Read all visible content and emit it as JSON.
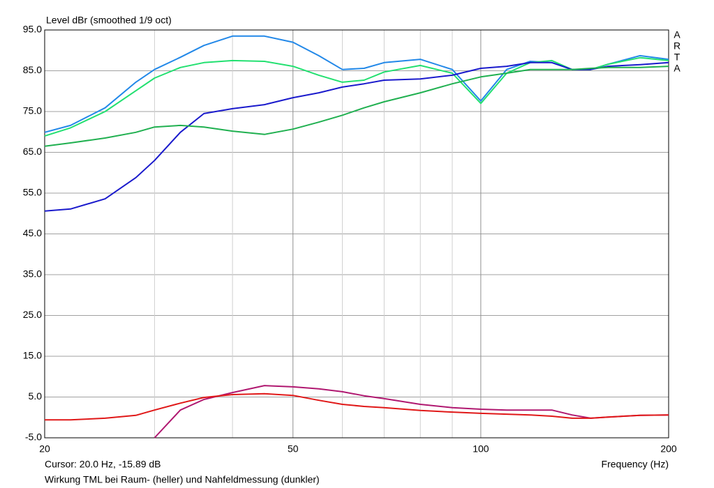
{
  "chart_data": {
    "type": "line",
    "title": "Level dBr (smoothed 1/9 oct)",
    "x_label": "Frequency (Hz)",
    "cursor": "Cursor: 20.0 Hz, -15.89 dB",
    "caption": "Wirkung TML bei Raum- (heller) und Nahfeldmessung (dunkler)",
    "brand": [
      "A",
      "R",
      "T",
      "A"
    ],
    "xscale": "log",
    "grid": true,
    "xlim": [
      20,
      200
    ],
    "ylim": [
      -5,
      95
    ],
    "xticks": [
      20,
      50,
      100,
      200
    ],
    "xminor": [
      30,
      40,
      60,
      70,
      80,
      90
    ],
    "yticks": [
      {
        "value": -5,
        "label": "-5.0"
      },
      {
        "value": 5,
        "label": "5.0"
      },
      {
        "value": 15,
        "label": "15.0"
      },
      {
        "value": 25,
        "label": "25.0"
      },
      {
        "value": 35,
        "label": "35.0"
      },
      {
        "value": 45,
        "label": "45.0"
      },
      {
        "value": 55,
        "label": "55.0"
      },
      {
        "value": 65,
        "label": "65.0"
      },
      {
        "value": 75,
        "label": "75.0"
      },
      {
        "value": 85,
        "label": "85.0"
      },
      {
        "value": 95,
        "label": "95.0"
      }
    ],
    "x": [
      20,
      22,
      25,
      28,
      30,
      33,
      36,
      40,
      45,
      50,
      55,
      60,
      65,
      70,
      80,
      90,
      100,
      110,
      120,
      130,
      140,
      150,
      160,
      180,
      200
    ],
    "series": [
      {
        "color": "#2288e8",
        "values": [
          69.9,
          71.6,
          75.9,
          82.2,
          85.3,
          88.3,
          91.2,
          93.5,
          93.5,
          92,
          88.7,
          85.3,
          85.6,
          87,
          87.8,
          85.3,
          77.6,
          85.3,
          87.3,
          87,
          85.3,
          85.3,
          86.6,
          88.7,
          87.8
        ]
      },
      {
        "color": "#22e070",
        "values": [
          69,
          71,
          75,
          80.1,
          83.2,
          85.8,
          87,
          87.5,
          87.3,
          86.1,
          83.9,
          82.2,
          82.7,
          84.7,
          86.3,
          84.4,
          77,
          84.4,
          87,
          87.5,
          85.3,
          85.3,
          86.6,
          88.2,
          87.5
        ]
      },
      {
        "color": "#1a1acc",
        "values": [
          50.6,
          51.1,
          53.6,
          58.8,
          63,
          69.9,
          74.5,
          75.7,
          76.7,
          78.4,
          79.6,
          81,
          81.8,
          82.7,
          83,
          83.9,
          85.6,
          86.1,
          87,
          87,
          85.3,
          85.3,
          86.1,
          86.5,
          87
        ]
      },
      {
        "color": "#20b050",
        "values": [
          66.5,
          67.3,
          68.5,
          69.9,
          71.2,
          71.6,
          71.2,
          70.2,
          69.4,
          70.7,
          72.4,
          74.1,
          75.9,
          77.4,
          79.6,
          81.8,
          83.5,
          84.4,
          85.3,
          85.3,
          85.3,
          85.6,
          85.8,
          85.8,
          86.1
        ]
      },
      {
        "color": "#b01870",
        "values": [
          null,
          null,
          null,
          null,
          -5,
          1.8,
          4.4,
          6.1,
          7.8,
          7.5,
          7,
          6.3,
          5.3,
          4.6,
          3.2,
          2.4,
          2,
          1.8,
          1.8,
          1.8,
          0.6,
          -0.2,
          0.1,
          0.5,
          0.6
        ]
      },
      {
        "color": "#e01818",
        "values": [
          -0.6,
          -0.6,
          -0.2,
          0.5,
          1.8,
          3.5,
          4.9,
          5.6,
          5.8,
          5.4,
          4.2,
          3.2,
          2.7,
          2.4,
          1.7,
          1.3,
          1,
          0.8,
          0.6,
          0.3,
          -0.2,
          -0.2,
          0.1,
          0.5,
          0.6
        ]
      }
    ]
  }
}
